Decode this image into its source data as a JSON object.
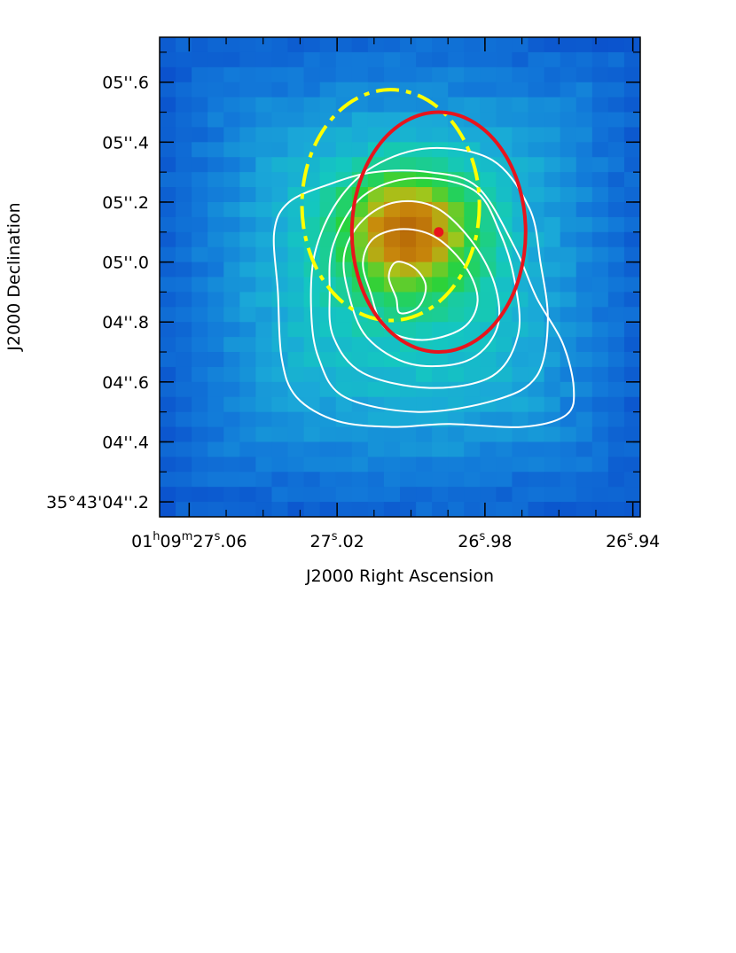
{
  "chart_data": {
    "type": "heatmap",
    "title": "",
    "xlabel": "J2000 Right Ascension",
    "ylabel": "J2000 Declination",
    "x_unit": "seconds of RA past 01h09m",
    "y_unit": "arcsec of Dec past 35°43'",
    "xlim": [
      27.068,
      26.938
    ],
    "ylim": [
      4.15,
      5.75
    ],
    "xticks": [
      {
        "value": 27.06,
        "label_main": "01",
        "h": "h",
        "mid": "09",
        "m": "m",
        "post": "27",
        "s": "s",
        "frac": ".06"
      },
      {
        "value": 27.02,
        "label_main": "27",
        "s": "s",
        "frac": ".02"
      },
      {
        "value": 26.98,
        "label_main": "26",
        "s": "s",
        "frac": ".98"
      },
      {
        "value": 26.94,
        "label_main": "26",
        "s": "s",
        "frac": ".94"
      }
    ],
    "xticks_minor": [
      27.06,
      27.05,
      27.04,
      27.03,
      27.02,
      27.01,
      27.0,
      26.99,
      26.98,
      26.97,
      26.96,
      26.95,
      26.94
    ],
    "yticks": [
      {
        "value": 5.6,
        "label": "05''.6"
      },
      {
        "value": 5.4,
        "label": "05''.4"
      },
      {
        "value": 5.2,
        "label": "05''.2"
      },
      {
        "value": 5.0,
        "label": "05''.0"
      },
      {
        "value": 4.8,
        "label": "04''.8"
      },
      {
        "value": 4.6,
        "label": "04''.6"
      },
      {
        "value": 4.4,
        "label": "04''.4"
      },
      {
        "value": 4.2,
        "label": "35°43'04''.2"
      }
    ],
    "yticks_minor": [
      4.2,
      4.3,
      4.4,
      4.5,
      4.6,
      4.7,
      4.8,
      4.9,
      5.0,
      5.1,
      5.2,
      5.3,
      5.4,
      5.5,
      5.6,
      5.7
    ],
    "heatmap": {
      "grid": [
        30,
        32
      ],
      "peak": {
        "x": 27.001,
        "y": 5.1
      },
      "colormap": [
        "#0a4fcc",
        "#1279d9",
        "#1aa8d8",
        "#14c7c0",
        "#1fd07a",
        "#29d23a",
        "#a6c51a",
        "#c98a0c",
        "#b86a08"
      ]
    },
    "contours": [
      {
        "level": 1,
        "points": [
          [
            27.004,
            4.88
          ],
          [
            27.006,
            4.95
          ],
          [
            27.004,
            5.0
          ],
          [
            26.999,
            4.98
          ],
          [
            26.996,
            4.92
          ],
          [
            26.998,
            4.85
          ],
          [
            27.003,
            4.83
          ]
        ]
      },
      {
        "level": 2,
        "points": [
          [
            27.011,
            4.9
          ],
          [
            27.013,
            5.0
          ],
          [
            27.01,
            5.08
          ],
          [
            27.002,
            5.11
          ],
          [
            26.993,
            5.08
          ],
          [
            26.985,
            4.98
          ],
          [
            26.982,
            4.87
          ],
          [
            26.986,
            4.78
          ],
          [
            26.997,
            4.74
          ],
          [
            27.007,
            4.78
          ]
        ]
      },
      {
        "level": 3,
        "points": [
          [
            27.017,
            4.9
          ],
          [
            27.018,
            5.03
          ],
          [
            27.013,
            5.14
          ],
          [
            27.004,
            5.2
          ],
          [
            26.993,
            5.18
          ],
          [
            26.983,
            5.06
          ],
          [
            26.977,
            4.91
          ],
          [
            26.977,
            4.77
          ],
          [
            26.985,
            4.67
          ],
          [
            27.0,
            4.66
          ],
          [
            27.012,
            4.75
          ]
        ]
      },
      {
        "level": 4,
        "points": [
          [
            27.022,
            4.9
          ],
          [
            27.021,
            5.06
          ],
          [
            27.013,
            5.22
          ],
          [
            26.999,
            5.28
          ],
          [
            26.983,
            5.24
          ],
          [
            26.976,
            5.1
          ],
          [
            26.972,
            4.94
          ],
          [
            26.971,
            4.76
          ],
          [
            26.978,
            4.62
          ],
          [
            26.995,
            4.58
          ],
          [
            27.013,
            4.63
          ],
          [
            27.021,
            4.75
          ]
        ]
      },
      {
        "level": 5,
        "points": [
          [
            27.027,
            4.84
          ],
          [
            27.026,
            5.03
          ],
          [
            27.02,
            5.2
          ],
          [
            27.01,
            5.32
          ],
          [
            26.995,
            5.38
          ],
          [
            26.978,
            5.34
          ],
          [
            26.968,
            5.18
          ],
          [
            26.965,
            5.0
          ],
          [
            26.963,
            4.8
          ],
          [
            26.966,
            4.62
          ],
          [
            26.977,
            4.54
          ],
          [
            26.998,
            4.5
          ],
          [
            27.018,
            4.55
          ],
          [
            27.025,
            4.68
          ]
        ]
      },
      {
        "level": 6,
        "points": [
          [
            27.035,
            4.68
          ],
          [
            27.036,
            4.9
          ],
          [
            27.037,
            5.1
          ],
          [
            27.033,
            5.2
          ],
          [
            27.022,
            5.26
          ],
          [
            27.01,
            5.3
          ],
          [
            26.995,
            5.3
          ],
          [
            26.982,
            5.25
          ],
          [
            26.972,
            5.05
          ],
          [
            26.966,
            4.88
          ],
          [
            26.959,
            4.73
          ],
          [
            26.956,
            4.58
          ],
          [
            26.958,
            4.49
          ],
          [
            26.97,
            4.45
          ],
          [
            26.99,
            4.46
          ],
          [
            27.005,
            4.45
          ],
          [
            27.02,
            4.47
          ],
          [
            27.031,
            4.55
          ]
        ]
      }
    ],
    "circles": [
      {
        "name": "",
        "cx": 27.0055,
        "cy": 5.19,
        "r_x": 0.024,
        "r_y": 0.385,
        "color": "#ffff00",
        "style": "dashed"
      },
      {
        "name": "",
        "cx": 26.9925,
        "cy": 5.1,
        "r_x": 0.0235,
        "r_y": 0.4,
        "color": "#e8141c",
        "style": "solid"
      }
    ],
    "point": {
      "x": 26.9925,
      "y": 5.1,
      "color": "#e8141c"
    }
  }
}
